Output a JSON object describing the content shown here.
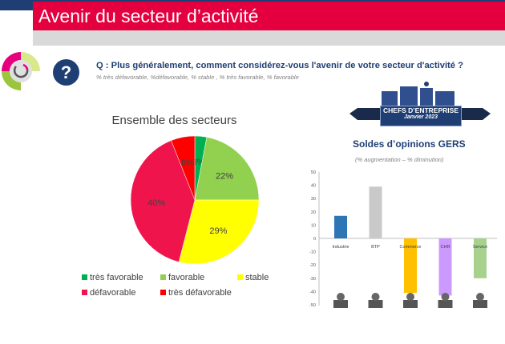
{
  "header": {
    "title": "Avenir du secteur d’activité"
  },
  "question": {
    "icon": "question-mark-icon",
    "label": "?",
    "text": "Q :  Plus généralement, comment considérez-vous l'avenir de votre secteur d'activité ?",
    "subtitle": "% très défavorable, %défavorable, % stable  , % très favorable, % favorable"
  },
  "badge": {
    "line1": "CHEFS D’ENTREPRISE",
    "line2": "Janvier 2023"
  },
  "chart_data": [
    {
      "type": "pie",
      "title": "Ensemble des secteurs",
      "legend": "bottom",
      "categories": [
        "très favorable",
        "favorable",
        "stable",
        "défavorable",
        "très défavorable"
      ],
      "values": [
        3,
        22,
        29,
        40,
        6
      ],
      "labels": [
        "3%",
        "22%",
        "29%",
        "40%",
        "6%"
      ],
      "colors": [
        "#00b050",
        "#92d050",
        "#ffff00",
        "#f0144c",
        "#ff0000"
      ]
    },
    {
      "type": "bar",
      "title": "Soldes d’opinions GERS",
      "subtitle": "(% augmentation – % diminution)",
      "categories": [
        "Industrie",
        "BTP",
        "Commerce",
        "CHR",
        "Service"
      ],
      "values": [
        17,
        39,
        -41,
        -43,
        -30
      ],
      "colors": [
        "#2e75b6",
        "#c9c9c9",
        "#ffc000",
        "#cc99ff",
        "#a9d18e"
      ],
      "ylim": [
        -50,
        50
      ],
      "yticks": [
        "50",
        "40",
        "30",
        "20",
        "10",
        "0",
        "-10",
        "-20",
        "-30",
        "-40",
        "-50"
      ],
      "icons": [
        "factory-icon",
        "excavator-icon",
        "shopping-cart-icon",
        "plate-cutlery-icon",
        "call-center-person-icon"
      ]
    }
  ]
}
